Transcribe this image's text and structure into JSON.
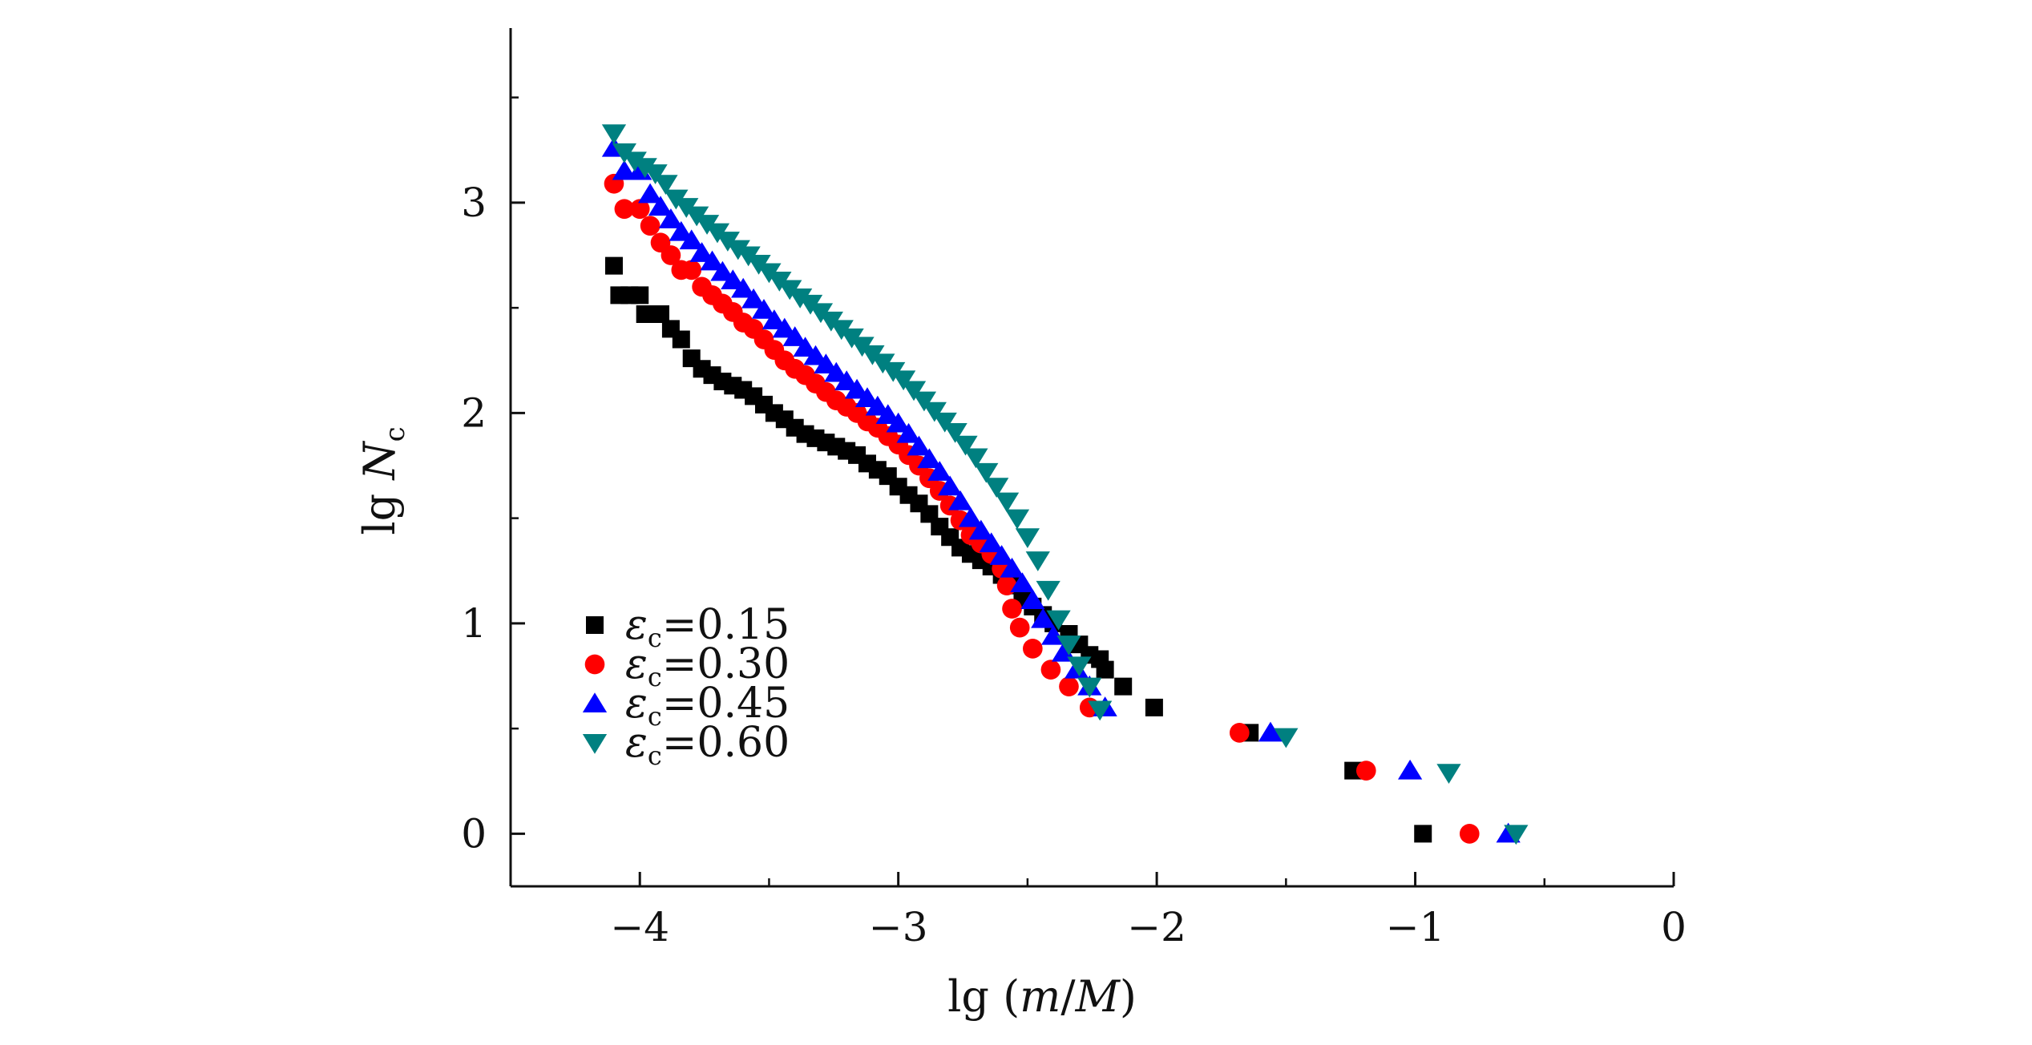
{
  "chart_data": {
    "type": "scatter",
    "xlabel": {
      "prefix": "lg (",
      "var1": "m",
      "sep": "/",
      "var2": "M",
      "suffix": ")"
    },
    "ylabel": {
      "prefix": "lg ",
      "var": "N",
      "sub": "c"
    },
    "xlim": [
      -4.5,
      0
    ],
    "ylim": [
      -0.25,
      3.75
    ],
    "x_ticks": [
      -4,
      -3,
      -2,
      -1,
      0
    ],
    "x_tick_labels": [
      "−4",
      "−3",
      "−2",
      "−1",
      "0"
    ],
    "y_ticks": [
      0,
      1,
      2,
      3
    ],
    "y_tick_labels": [
      "0",
      "1",
      "2",
      "3"
    ],
    "grid": false,
    "legend_position": "bottom-left",
    "series": [
      {
        "name": "εc=0.15",
        "legend": {
          "sym": "ε",
          "sub": "c",
          "val": "=0.15"
        },
        "color": "#000000",
        "marker": "square",
        "points": [
          [
            -4.1,
            2.7
          ],
          [
            -4.08,
            2.56
          ],
          [
            -4.04,
            2.56
          ],
          [
            -4.0,
            2.56
          ],
          [
            -3.98,
            2.47
          ],
          [
            -3.92,
            2.47
          ],
          [
            -3.88,
            2.4
          ],
          [
            -3.84,
            2.35
          ],
          [
            -3.8,
            2.26
          ],
          [
            -3.76,
            2.21
          ],
          [
            -3.72,
            2.18
          ],
          [
            -3.68,
            2.15
          ],
          [
            -3.64,
            2.13
          ],
          [
            -3.6,
            2.11
          ],
          [
            -3.56,
            2.08
          ],
          [
            -3.52,
            2.04
          ],
          [
            -3.48,
            2.0
          ],
          [
            -3.44,
            1.97
          ],
          [
            -3.4,
            1.93
          ],
          [
            -3.36,
            1.9
          ],
          [
            -3.32,
            1.88
          ],
          [
            -3.28,
            1.86
          ],
          [
            -3.24,
            1.84
          ],
          [
            -3.2,
            1.82
          ],
          [
            -3.16,
            1.8
          ],
          [
            -3.12,
            1.76
          ],
          [
            -3.08,
            1.73
          ],
          [
            -3.04,
            1.7
          ],
          [
            -3.0,
            1.65
          ],
          [
            -2.96,
            1.61
          ],
          [
            -2.92,
            1.57
          ],
          [
            -2.88,
            1.52
          ],
          [
            -2.84,
            1.46
          ],
          [
            -2.8,
            1.41
          ],
          [
            -2.76,
            1.36
          ],
          [
            -2.72,
            1.33
          ],
          [
            -2.68,
            1.3
          ],
          [
            -2.64,
            1.27
          ],
          [
            -2.6,
            1.23
          ],
          [
            -2.56,
            1.18
          ],
          [
            -2.52,
            1.12
          ],
          [
            -2.48,
            1.08
          ],
          [
            -2.44,
            1.04
          ],
          [
            -2.4,
            1.0
          ],
          [
            -2.34,
            0.95
          ],
          [
            -2.3,
            0.9
          ],
          [
            -2.26,
            0.85
          ],
          [
            -2.22,
            0.83
          ],
          [
            -2.2,
            0.78
          ],
          [
            -2.13,
            0.7
          ],
          [
            -2.01,
            0.6
          ],
          [
            -1.64,
            0.48
          ],
          [
            -1.24,
            0.3
          ],
          [
            -0.97,
            0.0
          ]
        ]
      },
      {
        "name": "εc=0.30",
        "legend": {
          "sym": "ε",
          "sub": "c",
          "val": "=0.30"
        },
        "color": "#ff0000",
        "marker": "circle",
        "points": [
          [
            -4.1,
            3.09
          ],
          [
            -4.06,
            2.97
          ],
          [
            -4.0,
            2.97
          ],
          [
            -3.96,
            2.89
          ],
          [
            -3.92,
            2.81
          ],
          [
            -3.88,
            2.75
          ],
          [
            -3.84,
            2.68
          ],
          [
            -3.8,
            2.68
          ],
          [
            -3.76,
            2.6
          ],
          [
            -3.72,
            2.56
          ],
          [
            -3.68,
            2.52
          ],
          [
            -3.64,
            2.48
          ],
          [
            -3.6,
            2.43
          ],
          [
            -3.56,
            2.4
          ],
          [
            -3.52,
            2.35
          ],
          [
            -3.48,
            2.3
          ],
          [
            -3.44,
            2.25
          ],
          [
            -3.4,
            2.21
          ],
          [
            -3.36,
            2.18
          ],
          [
            -3.32,
            2.14
          ],
          [
            -3.28,
            2.1
          ],
          [
            -3.24,
            2.06
          ],
          [
            -3.2,
            2.03
          ],
          [
            -3.16,
            2.0
          ],
          [
            -3.12,
            1.96
          ],
          [
            -3.08,
            1.93
          ],
          [
            -3.04,
            1.89
          ],
          [
            -3.0,
            1.85
          ],
          [
            -2.96,
            1.8
          ],
          [
            -2.92,
            1.75
          ],
          [
            -2.88,
            1.69
          ],
          [
            -2.84,
            1.63
          ],
          [
            -2.8,
            1.56
          ],
          [
            -2.76,
            1.49
          ],
          [
            -2.72,
            1.42
          ],
          [
            -2.68,
            1.38
          ],
          [
            -2.64,
            1.33
          ],
          [
            -2.6,
            1.26
          ],
          [
            -2.58,
            1.18
          ],
          [
            -2.56,
            1.07
          ],
          [
            -2.53,
            0.98
          ],
          [
            -2.48,
            0.88
          ],
          [
            -2.41,
            0.78
          ],
          [
            -2.34,
            0.7
          ],
          [
            -2.26,
            0.6
          ],
          [
            -1.68,
            0.48
          ],
          [
            -1.19,
            0.3
          ],
          [
            -0.79,
            0.0
          ]
        ]
      },
      {
        "name": "εc=0.45",
        "legend": {
          "sym": "ε",
          "sub": "c",
          "val": "=0.45"
        },
        "color": "#0000ff",
        "marker": "triangle-up",
        "points": [
          [
            -4.1,
            3.26
          ],
          [
            -4.06,
            3.15
          ],
          [
            -4.0,
            3.15
          ],
          [
            -3.96,
            3.04
          ],
          [
            -3.92,
            2.98
          ],
          [
            -3.88,
            2.92
          ],
          [
            -3.84,
            2.86
          ],
          [
            -3.8,
            2.82
          ],
          [
            -3.76,
            2.76
          ],
          [
            -3.72,
            2.72
          ],
          [
            -3.68,
            2.67
          ],
          [
            -3.64,
            2.63
          ],
          [
            -3.6,
            2.59
          ],
          [
            -3.56,
            2.54
          ],
          [
            -3.52,
            2.49
          ],
          [
            -3.48,
            2.44
          ],
          [
            -3.44,
            2.4
          ],
          [
            -3.4,
            2.36
          ],
          [
            -3.36,
            2.31
          ],
          [
            -3.32,
            2.27
          ],
          [
            -3.28,
            2.23
          ],
          [
            -3.24,
            2.19
          ],
          [
            -3.2,
            2.15
          ],
          [
            -3.16,
            2.11
          ],
          [
            -3.12,
            2.07
          ],
          [
            -3.08,
            2.03
          ],
          [
            -3.04,
            1.99
          ],
          [
            -3.0,
            1.95
          ],
          [
            -2.96,
            1.9
          ],
          [
            -2.92,
            1.84
          ],
          [
            -2.88,
            1.78
          ],
          [
            -2.84,
            1.72
          ],
          [
            -2.8,
            1.65
          ],
          [
            -2.76,
            1.58
          ],
          [
            -2.72,
            1.5
          ],
          [
            -2.68,
            1.44
          ],
          [
            -2.64,
            1.38
          ],
          [
            -2.6,
            1.32
          ],
          [
            -2.56,
            1.26
          ],
          [
            -2.52,
            1.19
          ],
          [
            -2.48,
            1.11
          ],
          [
            -2.44,
            1.02
          ],
          [
            -2.4,
            0.94
          ],
          [
            -2.36,
            0.86
          ],
          [
            -2.31,
            0.78
          ],
          [
            -2.26,
            0.7
          ],
          [
            -2.2,
            0.6
          ],
          [
            -1.56,
            0.48
          ],
          [
            -1.02,
            0.3
          ],
          [
            -0.64,
            0.0
          ]
        ]
      },
      {
        "name": "εc=0.60",
        "legend": {
          "sym": "ε",
          "sub": "c",
          "val": "=0.60"
        },
        "color": "#008080",
        "marker": "triangle-down",
        "points": [
          [
            -4.1,
            3.33
          ],
          [
            -4.06,
            3.24
          ],
          [
            -4.02,
            3.2
          ],
          [
            -3.98,
            3.17
          ],
          [
            -3.94,
            3.14
          ],
          [
            -3.9,
            3.09
          ],
          [
            -3.86,
            3.02
          ],
          [
            -3.82,
            2.98
          ],
          [
            -3.78,
            2.94
          ],
          [
            -3.74,
            2.9
          ],
          [
            -3.7,
            2.86
          ],
          [
            -3.66,
            2.82
          ],
          [
            -3.62,
            2.78
          ],
          [
            -3.58,
            2.75
          ],
          [
            -3.54,
            2.71
          ],
          [
            -3.5,
            2.67
          ],
          [
            -3.46,
            2.63
          ],
          [
            -3.42,
            2.59
          ],
          [
            -3.38,
            2.55
          ],
          [
            -3.34,
            2.52
          ],
          [
            -3.3,
            2.48
          ],
          [
            -3.26,
            2.44
          ],
          [
            -3.22,
            2.4
          ],
          [
            -3.18,
            2.36
          ],
          [
            -3.14,
            2.32
          ],
          [
            -3.1,
            2.28
          ],
          [
            -3.06,
            2.24
          ],
          [
            -3.02,
            2.2
          ],
          [
            -2.98,
            2.16
          ],
          [
            -2.94,
            2.11
          ],
          [
            -2.9,
            2.06
          ],
          [
            -2.86,
            2.01
          ],
          [
            -2.82,
            1.96
          ],
          [
            -2.78,
            1.91
          ],
          [
            -2.74,
            1.85
          ],
          [
            -2.7,
            1.79
          ],
          [
            -2.66,
            1.72
          ],
          [
            -2.62,
            1.65
          ],
          [
            -2.58,
            1.58
          ],
          [
            -2.54,
            1.5
          ],
          [
            -2.5,
            1.41
          ],
          [
            -2.46,
            1.3
          ],
          [
            -2.42,
            1.16
          ],
          [
            -2.38,
            1.02
          ],
          [
            -2.34,
            0.9
          ],
          [
            -2.3,
            0.8
          ],
          [
            -2.26,
            0.7
          ],
          [
            -2.22,
            0.59
          ],
          [
            -1.5,
            0.46
          ],
          [
            -0.87,
            0.29
          ],
          [
            -0.61,
            0.0
          ]
        ]
      }
    ]
  }
}
